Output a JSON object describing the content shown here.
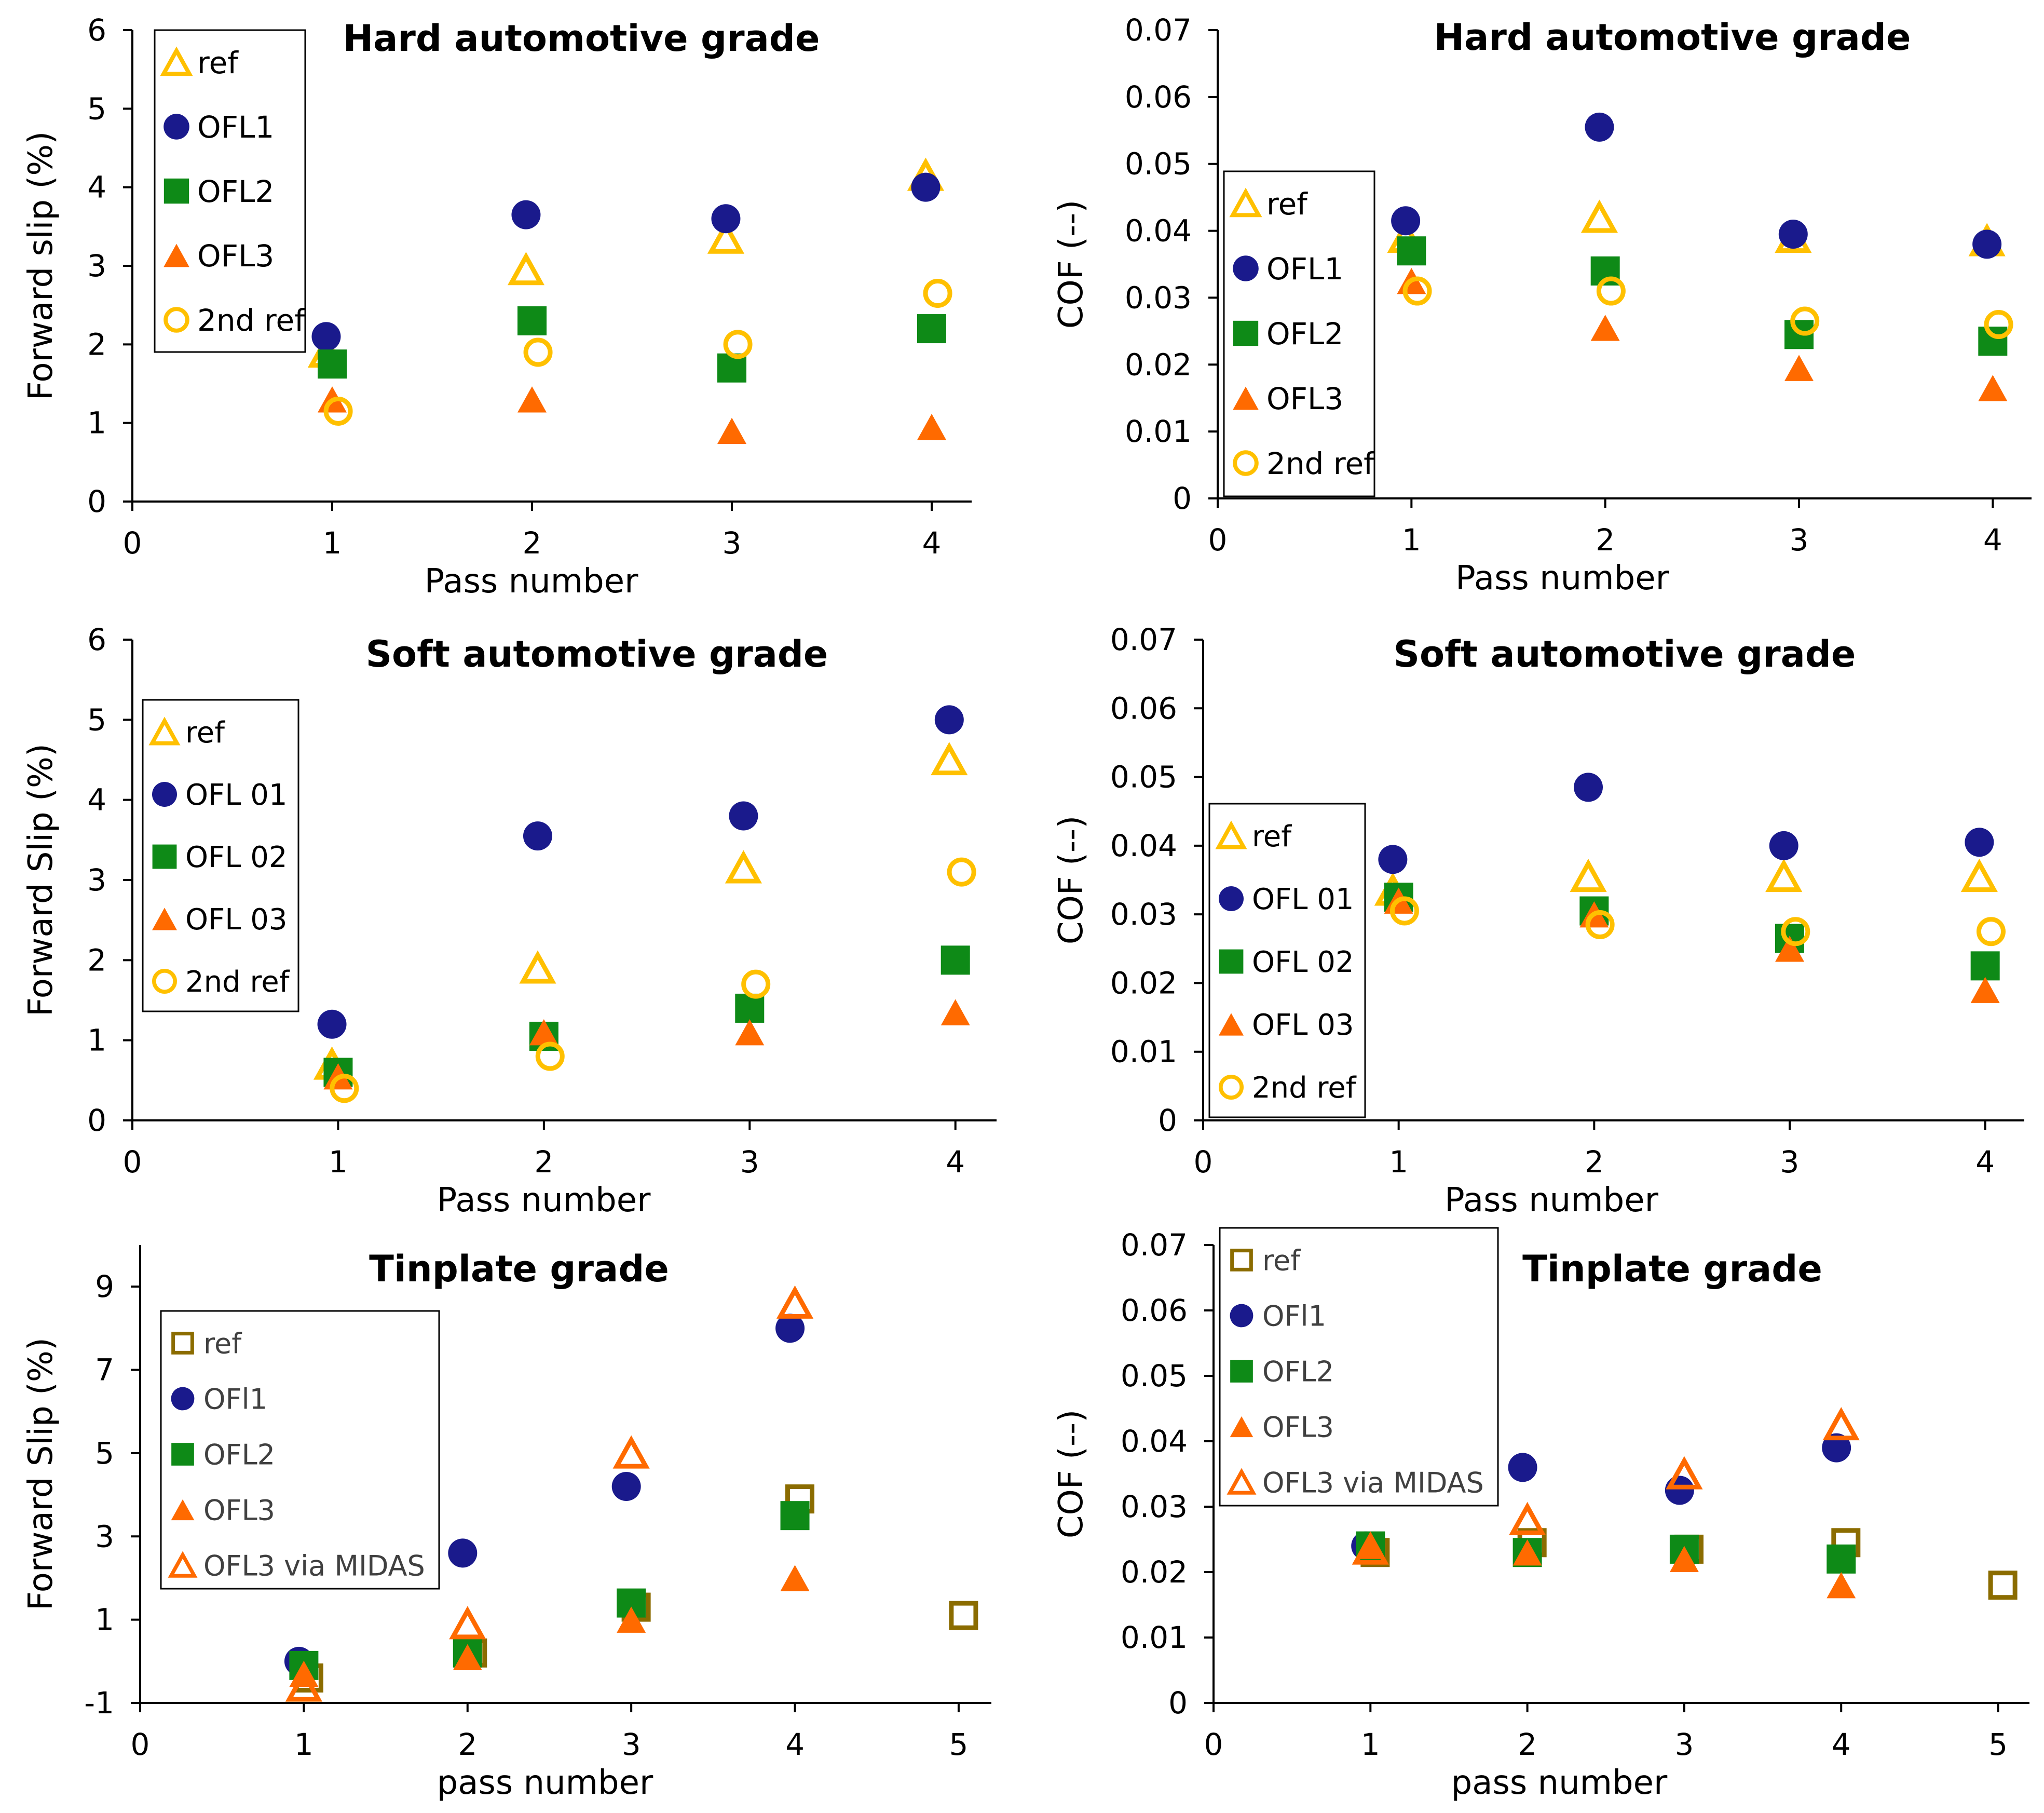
{
  "colors": {
    "ref": "#ffc000",
    "ofl1": "#1a1a8c",
    "ofl2": "#0e8a17",
    "ofl3": "#ff6a00",
    "ref_tinplate": "#8b6c00",
    "midas": "#ff6a00",
    "axis": "#000000"
  },
  "chart_data": [
    {
      "type": "scatter",
      "title": "Hard automotive grade",
      "xlabel": "Pass number",
      "ylabel": "Forward slip (%)",
      "xlim": [
        0,
        4.2
      ],
      "ylim": [
        0,
        6
      ],
      "xticks": [
        "0",
        "1",
        "2",
        "3",
        "4"
      ],
      "yticks": [
        "0",
        "1",
        "2",
        "3",
        "4",
        "5",
        "6"
      ],
      "legend_position": "top-left",
      "series": [
        {
          "name": "ref",
          "marker": "triangle-open",
          "color_key": "ref",
          "x": [
            0.97,
            1.97,
            2.97,
            3.97
          ],
          "y": [
            1.9,
            2.95,
            3.35,
            4.15
          ]
        },
        {
          "name": "OFL1",
          "marker": "circle",
          "color_key": "ofl1",
          "x": [
            0.97,
            1.97,
            2.97,
            3.97
          ],
          "y": [
            2.1,
            3.65,
            3.6,
            4.0
          ]
        },
        {
          "name": "OFL2",
          "marker": "square",
          "color_key": "ofl2",
          "x": [
            1.0,
            2.0,
            3.0,
            4.0
          ],
          "y": [
            1.75,
            2.3,
            1.7,
            2.2
          ]
        },
        {
          "name": "OFL3",
          "marker": "triangle",
          "color_key": "ofl3",
          "x": [
            1.0,
            2.0,
            3.0,
            4.0
          ],
          "y": [
            1.3,
            1.3,
            0.9,
            0.95
          ]
        },
        {
          "name": "2nd ref",
          "marker": "circle-open",
          "color_key": "ref",
          "x": [
            1.03,
            2.03,
            3.03,
            4.03
          ],
          "y": [
            1.15,
            1.9,
            2.0,
            2.65
          ]
        }
      ]
    },
    {
      "type": "scatter",
      "title": "Hard automotive grade",
      "xlabel": "Pass number",
      "ylabel": "COF (--)",
      "xlim": [
        0,
        4.2
      ],
      "ylim": [
        0,
        0.07
      ],
      "xticks": [
        "0",
        "1",
        "2",
        "3",
        "4"
      ],
      "yticks": [
        "0",
        "0.01",
        "0.02",
        "0.03",
        "0.04",
        "0.05",
        "0.06",
        "0.07"
      ],
      "legend_position": "middle-left",
      "series": [
        {
          "name": "ref",
          "marker": "triangle-open",
          "color_key": "ref",
          "x": [
            0.97,
            1.97,
            2.97,
            3.97
          ],
          "y": [
            0.039,
            0.042,
            0.039,
            0.0385
          ]
        },
        {
          "name": "OFL1",
          "marker": "circle",
          "color_key": "ofl1",
          "x": [
            0.97,
            1.97,
            2.97,
            3.97
          ],
          "y": [
            0.0415,
            0.0555,
            0.0395,
            0.038
          ]
        },
        {
          "name": "OFL2",
          "marker": "square",
          "color_key": "ofl2",
          "x": [
            1.0,
            2.0,
            3.0,
            4.0
          ],
          "y": [
            0.037,
            0.034,
            0.0245,
            0.0235
          ]
        },
        {
          "name": "OFL3",
          "marker": "triangle",
          "color_key": "ofl3",
          "x": [
            1.0,
            2.0,
            3.0,
            4.0
          ],
          "y": [
            0.0325,
            0.0255,
            0.0195,
            0.0165
          ]
        },
        {
          "name": "2nd ref",
          "marker": "circle-open",
          "color_key": "ref",
          "x": [
            1.03,
            2.03,
            3.03,
            4.03
          ],
          "y": [
            0.031,
            0.031,
            0.0265,
            0.026
          ]
        }
      ]
    },
    {
      "type": "scatter",
      "title": "Soft automotive grade",
      "xlabel": "Pass number",
      "ylabel": "Forward Slip (%)",
      "xlim": [
        0,
        4.2
      ],
      "ylim": [
        0,
        6
      ],
      "xticks": [
        "0",
        "1",
        "2",
        "3",
        "4"
      ],
      "yticks": [
        "0",
        "1",
        "2",
        "3",
        "4",
        "5",
        "6"
      ],
      "legend_position": "middle-left",
      "series": [
        {
          "name": "ref",
          "marker": "triangle-open",
          "color_key": "ref",
          "x": [
            0.97,
            1.97,
            2.97,
            3.97
          ],
          "y": [
            0.7,
            1.9,
            3.15,
            4.5
          ]
        },
        {
          "name": "OFL 01",
          "marker": "circle",
          "color_key": "ofl1",
          "x": [
            0.97,
            1.97,
            2.97,
            3.97
          ],
          "y": [
            1.2,
            3.55,
            3.8,
            5.0
          ]
        },
        {
          "name": "OFL 02",
          "marker": "square",
          "color_key": "ofl2",
          "x": [
            1.0,
            2.0,
            3.0,
            4.0
          ],
          "y": [
            0.6,
            1.05,
            1.4,
            2.0
          ]
        },
        {
          "name": "OFL 03",
          "marker": "triangle",
          "color_key": "ofl3",
          "x": [
            1.0,
            2.0,
            3.0,
            4.0
          ],
          "y": [
            0.55,
            1.1,
            1.1,
            1.35
          ]
        },
        {
          "name": "2nd ref",
          "marker": "circle-open",
          "color_key": "ref",
          "x": [
            1.03,
            2.03,
            3.03,
            4.03
          ],
          "y": [
            0.4,
            0.8,
            1.7,
            3.1
          ]
        }
      ]
    },
    {
      "type": "scatter",
      "title": "Soft automotive grade",
      "xlabel": "Pass number",
      "ylabel": "COF (--)",
      "xlim": [
        0,
        4.2
      ],
      "ylim": [
        0,
        0.07
      ],
      "xticks": [
        "0",
        "1",
        "2",
        "3",
        "4"
      ],
      "yticks": [
        "0",
        "0.01",
        "0.02",
        "0.03",
        "0.04",
        "0.05",
        "0.06",
        "0.07"
      ],
      "legend_position": "bottom-left",
      "series": [
        {
          "name": "ref",
          "marker": "triangle-open",
          "color_key": "ref",
          "x": [
            0.97,
            1.97,
            2.97,
            3.97
          ],
          "y": [
            0.0335,
            0.0355,
            0.0355,
            0.0355
          ]
        },
        {
          "name": "OFL 01",
          "marker": "circle",
          "color_key": "ofl1",
          "x": [
            0.97,
            1.97,
            2.97,
            3.97
          ],
          "y": [
            0.038,
            0.0485,
            0.04,
            0.0405
          ]
        },
        {
          "name": "OFL 02",
          "marker": "square",
          "color_key": "ofl2",
          "x": [
            1.0,
            2.0,
            3.0,
            4.0
          ],
          "y": [
            0.0325,
            0.0305,
            0.0265,
            0.0225
          ]
        },
        {
          "name": "OFL 03",
          "marker": "triangle",
          "color_key": "ofl3",
          "x": [
            1.0,
            2.0,
            3.0,
            4.0
          ],
          "y": [
            0.032,
            0.03,
            0.025,
            0.019
          ]
        },
        {
          "name": "2nd ref",
          "marker": "circle-open",
          "color_key": "ref",
          "x": [
            1.03,
            2.03,
            3.03,
            4.03
          ],
          "y": [
            0.0305,
            0.0285,
            0.0275,
            0.0275
          ]
        }
      ]
    },
    {
      "type": "scatter",
      "title": "Tinplate grade",
      "xlabel": "pass number",
      "ylabel": "Forward Slip (%)",
      "xlim": [
        0,
        5.2
      ],
      "ylim": [
        -1,
        10
      ],
      "xticks": [
        "0",
        "1",
        "2",
        "3",
        "4",
        "5"
      ],
      "yticks": [
        "-1",
        "1",
        "3",
        "5",
        "7",
        "9"
      ],
      "ytick_values": [
        -1,
        1,
        3,
        5,
        7,
        9
      ],
      "legend_position": "top-left",
      "series": [
        {
          "name": "ref",
          "marker": "square-open",
          "color_key": "ref_tinplate",
          "x": [
            1.03,
            2.03,
            3.03,
            4.03,
            5.03
          ],
          "y": [
            -0.4,
            0.2,
            1.3,
            3.9,
            1.1
          ]
        },
        {
          "name": "OFl1",
          "marker": "circle",
          "color_key": "ofl1",
          "x": [
            0.97,
            1.97,
            2.97,
            3.97
          ],
          "y": [
            0.0,
            2.6,
            4.2,
            8.0
          ]
        },
        {
          "name": "OFL2",
          "marker": "square",
          "color_key": "ofl2",
          "x": [
            1.0,
            2.0,
            3.0,
            4.0
          ],
          "y": [
            -0.1,
            0.2,
            1.4,
            3.5
          ]
        },
        {
          "name": "OFL3",
          "marker": "triangle",
          "color_key": "ofl3",
          "x": [
            1.0,
            2.0,
            3.0,
            4.0
          ],
          "y": [
            -0.3,
            0.1,
            1.0,
            2.0
          ]
        },
        {
          "name": "OFL3 via MIDAS",
          "marker": "triangle-open",
          "color_key": "midas",
          "x": [
            1.0,
            2.0,
            3.0,
            4.0
          ],
          "y": [
            -0.6,
            0.9,
            5.0,
            8.6
          ]
        }
      ]
    },
    {
      "type": "scatter",
      "title": "Tinplate grade",
      "xlabel": "pass number",
      "ylabel": "COF (--)",
      "xlim": [
        0,
        5.2
      ],
      "ylim": [
        0,
        0.07
      ],
      "xticks": [
        "0",
        "1",
        "2",
        "3",
        "4",
        "5"
      ],
      "yticks": [
        "0",
        "0.01",
        "0.02",
        "0.03",
        "0.04",
        "0.05",
        "0.06",
        "0.07"
      ],
      "legend_position": "top-left",
      "series": [
        {
          "name": "ref",
          "marker": "square-open",
          "color_key": "ref_tinplate",
          "x": [
            1.03,
            2.03,
            3.03,
            4.03,
            5.03
          ],
          "y": [
            0.023,
            0.0245,
            0.0235,
            0.0245,
            0.018
          ]
        },
        {
          "name": "OFl1",
          "marker": "circle",
          "color_key": "ofl1",
          "x": [
            0.97,
            1.97,
            2.97,
            3.97
          ],
          "y": [
            0.024,
            0.036,
            0.0325,
            0.039
          ]
        },
        {
          "name": "OFL2",
          "marker": "square",
          "color_key": "ofl2",
          "x": [
            1.0,
            2.0,
            3.0,
            4.0
          ],
          "y": [
            0.024,
            0.023,
            0.0235,
            0.022
          ]
        },
        {
          "name": "OFL3",
          "marker": "triangle",
          "color_key": "ofl3",
          "x": [
            1.0,
            2.0,
            3.0,
            4.0
          ],
          "y": [
            0.024,
            0.023,
            0.022,
            0.018
          ]
        },
        {
          "name": "OFL3 via MIDAS",
          "marker": "triangle-open",
          "color_key": "midas",
          "x": [
            1.0,
            2.0,
            3.0,
            4.0
          ],
          "y": [
            0.0235,
            0.028,
            0.035,
            0.0425
          ]
        }
      ]
    }
  ]
}
